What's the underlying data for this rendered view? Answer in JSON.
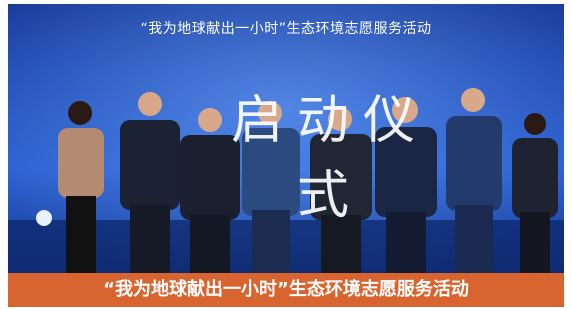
{
  "stage": {
    "banner": "“我为地球献出一小时”生态环境志愿服务活动",
    "headline": "启动仪式"
  },
  "caption": "“我为地球献出一小时”生态环境志愿服务活动"
}
